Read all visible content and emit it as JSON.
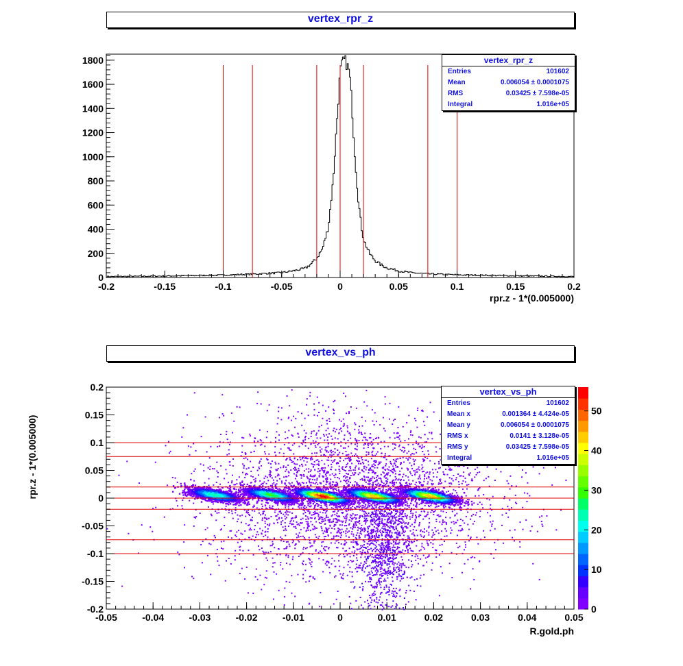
{
  "charts": {
    "top": {
      "title": "vertex_rpr_z",
      "stats": {
        "title": "vertex_rpr_z",
        "rows": [
          {
            "label": "Entries",
            "value": "101602"
          },
          {
            "label": "Mean",
            "value": "0.006054 ± 0.0001075"
          },
          {
            "label": "RMS",
            "value": "0.03425 ± 7.598e-05"
          },
          {
            "label": "Integral",
            "value": "1.016e+05"
          }
        ]
      }
    },
    "bottom": {
      "title": "vertex_vs_ph",
      "stats": {
        "title": "vertex_vs_ph",
        "rows": [
          {
            "label": "Entries",
            "value": "101602"
          },
          {
            "label": "Mean x",
            "value": "0.001364 ± 4.424e-05"
          },
          {
            "label": "Mean y",
            "value": "0.006054 ± 0.0001075"
          },
          {
            "label": "RMS x",
            "value": "0.0141 ± 3.128e-05"
          },
          {
            "label": "RMS y",
            "value": "0.03425 ± 7.598e-05"
          },
          {
            "label": "Integral",
            "value": "1.016e+05"
          }
        ]
      }
    }
  },
  "chart_data": [
    {
      "type": "bar",
      "title": "vertex_rpr_z",
      "xlabel": "rpr.z - 1*(0.005000)",
      "ylabel": "",
      "xlim": [
        -0.2,
        0.2
      ],
      "ylim": [
        0,
        1850
      ],
      "x_ticks": [
        "-0.2",
        "-0.15",
        "-0.1",
        "-0.05",
        "0",
        "0.05",
        "0.1",
        "0.15",
        "0.2"
      ],
      "x_tick_values": [
        -0.2,
        -0.15,
        -0.1,
        -0.05,
        0,
        0.05,
        0.1,
        0.15,
        0.2
      ],
      "y_ticks": [
        "0",
        "200",
        "400",
        "600",
        "800",
        "1000",
        "1200",
        "1400",
        "1600",
        "1800"
      ],
      "y_tick_values": [
        0,
        200,
        400,
        600,
        800,
        1000,
        1200,
        1400,
        1600,
        1800
      ],
      "histogram": {
        "x": [
          -0.2,
          -0.15,
          -0.1,
          -0.075,
          -0.05,
          -0.04,
          -0.03,
          -0.025,
          -0.02,
          -0.015,
          -0.01,
          -0.006,
          -0.003,
          0,
          0.002,
          0.004,
          0.006,
          0.008,
          0.01,
          0.012,
          0.015,
          0.018,
          0.02,
          0.025,
          0.03,
          0.035,
          0.04,
          0.05,
          0.06,
          0.075,
          0.1,
          0.15,
          0.2
        ],
        "values": [
          8,
          12,
          20,
          28,
          40,
          55,
          75,
          110,
          160,
          240,
          420,
          800,
          1250,
          1700,
          1780,
          1800,
          1760,
          1700,
          1450,
          1100,
          700,
          430,
          320,
          200,
          140,
          105,
          80,
          55,
          40,
          30,
          22,
          14,
          8
        ]
      },
      "cut_lines_x": [
        -0.1,
        -0.075,
        -0.02,
        0,
        0.02,
        0.075,
        0.1
      ],
      "cut_line_color": "#dd0000",
      "line_color": "#000000"
    },
    {
      "type": "heatmap",
      "title": "vertex_vs_ph",
      "xlabel": "R.gold.ph",
      "ylabel": "rpr.z - 1*(0.005000)",
      "xlim": [
        -0.05,
        0.05
      ],
      "ylim": [
        -0.2,
        0.2
      ],
      "zlim": [
        0,
        56
      ],
      "x_ticks": [
        "-0.05",
        "-0.04",
        "-0.03",
        "-0.02",
        "-0.01",
        "0",
        "0.01",
        "0.02",
        "0.03",
        "0.04",
        "0.05"
      ],
      "x_tick_values": [
        -0.05,
        -0.04,
        -0.03,
        -0.02,
        -0.01,
        0,
        0.01,
        0.02,
        0.03,
        0.04,
        0.05
      ],
      "y_ticks": [
        "-0.2",
        "-0.15",
        "-0.1",
        "-0.05",
        "0",
        "0.05",
        "0.1",
        "0.15",
        "0.2"
      ],
      "y_tick_values": [
        -0.2,
        -0.15,
        -0.1,
        -0.05,
        0,
        0.05,
        0.1,
        0.15,
        0.2
      ],
      "z_ticks": [
        "0",
        "10",
        "20",
        "30",
        "40",
        "50"
      ],
      "z_tick_values": [
        0,
        10,
        20,
        30,
        40,
        50
      ],
      "clusters": [
        {
          "x": -0.027,
          "y": 0.007,
          "peak": 25
        },
        {
          "x": -0.015,
          "y": 0.007,
          "peak": 30
        },
        {
          "x": -0.004,
          "y": 0.005,
          "peak": 55
        },
        {
          "x": 0.007,
          "y": 0.005,
          "peak": 45
        },
        {
          "x": 0.019,
          "y": 0.005,
          "peak": 45
        }
      ],
      "cut_lines_y": [
        0.1,
        0.075,
        0.02,
        0,
        -0.02,
        -0.075,
        -0.1
      ],
      "cut_line_color": "#dd0000",
      "palette": [
        "#7f00ff",
        "#6600ff",
        "#3300ff",
        "#0033ff",
        "#0066ff",
        "#0099ff",
        "#00ccff",
        "#00ffee",
        "#00ffb3",
        "#00ff66",
        "#33ff00",
        "#66ff00",
        "#99ff00",
        "#ccff00",
        "#ffff00",
        "#ffcc00",
        "#ff9900",
        "#ff6600",
        "#ff3300",
        "#ff0000"
      ]
    }
  ]
}
